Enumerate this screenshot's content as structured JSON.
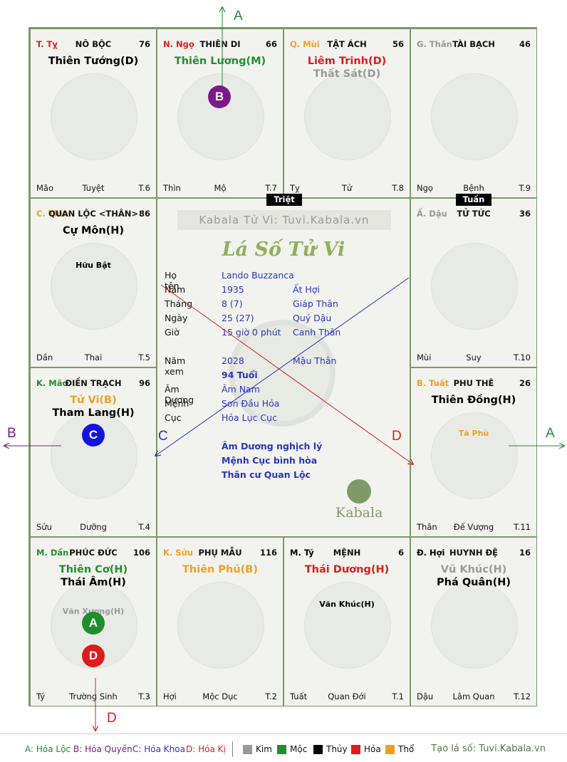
{
  "colors": {
    "moc": "#1f8f2e",
    "hoa": "#e01b1b",
    "tho": "#f0a020",
    "kim": "#999999",
    "thuy": "#000000",
    "blue": "#2a36b8",
    "purple": "#7a1a8a"
  },
  "cells": [
    {
      "chi": "T. Tỵ",
      "chi_color": "hoa",
      "palace": "NÔ BỘC",
      "num": "76",
      "stars": [
        {
          "t": "Thiên Tướng(D)",
          "c": "thuy"
        }
      ],
      "minor": [],
      "f_l": "Mão",
      "f_c": "Tuyệt",
      "f_r": "T.6"
    },
    {
      "chi": "N. Ngọ",
      "chi_color": "hoa",
      "palace": "THIÊN DI",
      "num": "66",
      "stars": [
        {
          "t": "Thiên Lương(M)",
          "c": "moc"
        }
      ],
      "minor": [],
      "f_l": "Thìn",
      "f_c": "Mộ",
      "f_r": "T.7"
    },
    {
      "chi": "Q. Mùi",
      "chi_color": "tho",
      "palace": "TẬT ÁCH",
      "num": "56",
      "stars": [
        {
          "t": "Liêm Trinh(D)",
          "c": "hoa"
        },
        {
          "t": "Thất Sát(D)",
          "c": "kim"
        }
      ],
      "minor": [],
      "f_l": "Tỵ",
      "f_c": "Tử",
      "f_r": "T.8"
    },
    {
      "chi": "G. Thân",
      "chi_color": "kim",
      "palace": "TÀI BẠCH",
      "num": "46",
      "stars": [],
      "minor": [],
      "f_l": "Ngọ",
      "f_c": "Bệnh",
      "f_r": "T.9"
    },
    {
      "chi": "C. Thìn",
      "chi_color": "tho",
      "palace": "QUAN LỘC <THÂN>",
      "num": "86",
      "stars": [
        {
          "t": "Cự Môn(H)",
          "c": "thuy"
        }
      ],
      "minor": [
        {
          "t": "Hữu Bật",
          "c": "thuy"
        }
      ],
      "f_l": "Dần",
      "f_c": "Thai",
      "f_r": "T.5"
    },
    {
      "chi": "Ấ. Dậu",
      "chi_color": "kim",
      "palace": "TỬ TỨC",
      "num": "36",
      "stars": [],
      "minor": [],
      "f_l": "Mùi",
      "f_c": "Suy",
      "f_r": "T.10"
    },
    {
      "chi": "K. Mão",
      "chi_color": "moc",
      "palace": "ĐIỀN TRẠCH",
      "num": "96",
      "stars": [
        {
          "t": "Tử Vi(B)",
          "c": "tho"
        },
        {
          "t": "Tham Lang(H)",
          "c": "thuy"
        }
      ],
      "minor": [],
      "f_l": "Sửu",
      "f_c": "Dưỡng",
      "f_r": "T.4"
    },
    {
      "chi": "B. Tuất",
      "chi_color": "tho",
      "palace": "PHU THÊ",
      "num": "26",
      "stars": [
        {
          "t": "Thiên Đồng(H)",
          "c": "thuy"
        }
      ],
      "minor": [
        {
          "t": "Tả Phù",
          "c": "tho"
        }
      ],
      "f_l": "Thân",
      "f_c": "Đế Vượng",
      "f_r": "T.11"
    },
    {
      "chi": "M. Dần",
      "chi_color": "moc",
      "palace": "PHÚC ĐỨC",
      "num": "106",
      "stars": [
        {
          "t": "Thiên Cơ(H)",
          "c": "moc"
        },
        {
          "t": "Thái Âm(H)",
          "c": "thuy"
        }
      ],
      "minor": [
        {
          "t": "Văn Xương(H)",
          "c": "kim"
        }
      ],
      "f_l": "Tý",
      "f_c": "Trường Sinh",
      "f_r": "T.3"
    },
    {
      "chi": "K. Sửu",
      "chi_color": "tho",
      "palace": "PHỤ MẪU",
      "num": "116",
      "stars": [
        {
          "t": "Thiên Phủ(B)",
          "c": "tho"
        }
      ],
      "minor": [],
      "f_l": "Hợi",
      "f_c": "Mộc Dục",
      "f_r": "T.2"
    },
    {
      "chi": "M. Tý",
      "chi_color": "thuy",
      "palace": "MỆNH",
      "num": "6",
      "stars": [
        {
          "t": "Thái Dương(H)",
          "c": "hoa"
        }
      ],
      "minor": [
        {
          "t": "Văn Khúc(H)",
          "c": "thuy"
        }
      ],
      "f_l": "Tuất",
      "f_c": "Quan Đới",
      "f_r": "T.1"
    },
    {
      "chi": "Đ. Hợi",
      "chi_color": "thuy",
      "palace": "HUYNH ĐỆ",
      "num": "16",
      "stars": [
        {
          "t": "Vũ Khúc(H)",
          "c": "kim"
        },
        {
          "t": "Phá Quân(H)",
          "c": "thuy"
        }
      ],
      "minor": [],
      "f_l": "Dậu",
      "f_c": "Lâm Quan",
      "f_r": "T.12"
    }
  ],
  "tags": {
    "triet": "Triệt",
    "tuan": "Tuần"
  },
  "center": {
    "brand": "Kabala Tử Vi: Tuvi.Kabala.vn",
    "title": "Lá Số Tử Vi",
    "rows": [
      {
        "k": "Họ tên",
        "v1": "Lando Buzzanca",
        "v2": ""
      },
      {
        "k": "Năm",
        "v1": "1935",
        "v2": "Ất Hợi"
      },
      {
        "k": "Tháng",
        "v1": "8  (7)",
        "v2": "Giáp Thân"
      },
      {
        "k": "Ngày",
        "v1": "25  (27)",
        "v2": "Quý Dậu"
      },
      {
        "k": "Giờ",
        "v1": "15 giờ 0 phút",
        "v2": "Canh Thân"
      },
      {
        "k": "Năm xem",
        "v1": "2028",
        "v2": "Mậu Thân"
      },
      {
        "k": "",
        "v1": "94 Tuổi",
        "v2": ""
      },
      {
        "k": "Âm Dương",
        "v1": "Âm Nam",
        "v2": ""
      },
      {
        "k": "Mệnh",
        "v1": "Sơn Đầu Hỏa",
        "v2": ""
      },
      {
        "k": "Cục",
        "v1": "Hỏa Lục Cục",
        "v2": ""
      }
    ],
    "notes": [
      "Âm Dương nghịch lý",
      "Mệnh Cục bình hòa",
      "Thân cư Quan Lộc"
    ],
    "logo_text": "Kabala"
  },
  "badges": {
    "a": "A",
    "b": "B",
    "c": "C",
    "d": "D"
  },
  "arrows": {
    "a_top": "A",
    "a_right": "A",
    "b_left": "B",
    "c_line": "C",
    "d_line": "D",
    "d_bottom": "D"
  },
  "legend": {
    "hoa_loc": "A: Hóa Lộc",
    "hoa_quyen": "B: Hóa Quyền",
    "hoa_khoa": "C: Hóa Khoa",
    "hoa_ki": "D: Hóa Kị",
    "kim": "Kim",
    "moc": "Mộc",
    "thuy": "Thủy",
    "hoa": "Hỏa",
    "tho": "Thổ",
    "site": "Tạo lá số: Tuvi.Kabala.vn"
  }
}
